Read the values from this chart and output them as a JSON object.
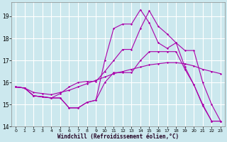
{
  "xlabel": "Windchill (Refroidissement éolien,°C)",
  "bg_color": "#cce8ee",
  "grid_color": "#ffffff",
  "line_color": "#aa00aa",
  "xlim_min": -0.5,
  "xlim_max": 23.5,
  "ylim_min": 14.0,
  "ylim_max": 19.65,
  "yticks": [
    14,
    15,
    16,
    17,
    18,
    19
  ],
  "xticks": [
    0,
    1,
    2,
    3,
    4,
    5,
    6,
    7,
    8,
    9,
    10,
    11,
    12,
    13,
    14,
    15,
    16,
    17,
    18,
    19,
    20,
    21,
    22,
    23
  ],
  "series": [
    {
      "x": [
        0,
        1,
        2,
        3,
        4,
        5,
        6,
        7,
        8,
        9,
        10,
        11,
        12,
        13,
        14,
        15,
        16,
        17,
        18,
        19,
        20,
        21,
        22,
        23
      ],
      "y": [
        15.8,
        15.75,
        15.4,
        15.35,
        15.3,
        15.3,
        14.85,
        14.85,
        15.1,
        15.2,
        17.0,
        18.45,
        18.65,
        18.65,
        19.3,
        18.7,
        17.8,
        17.55,
        17.8,
        16.7,
        15.9,
        15.0,
        14.25,
        14.25
      ]
    },
    {
      "x": [
        0,
        1,
        2,
        3,
        4,
        5,
        6,
        7,
        8,
        9,
        10,
        11,
        12,
        13,
        14,
        15,
        16,
        17,
        18,
        19,
        20,
        21,
        22,
        23
      ],
      "y": [
        15.8,
        15.75,
        15.4,
        15.35,
        15.3,
        15.5,
        15.8,
        16.0,
        16.05,
        16.05,
        16.5,
        17.0,
        17.5,
        17.5,
        18.45,
        19.25,
        18.55,
        18.2,
        17.8,
        17.45,
        17.45,
        16.0,
        15.0,
        14.25
      ]
    },
    {
      "x": [
        0,
        1,
        2,
        3,
        4,
        5,
        6,
        7,
        8,
        9,
        10,
        11,
        12,
        13,
        14,
        15,
        16,
        17,
        18,
        19,
        20,
        21,
        22,
        23
      ],
      "y": [
        15.8,
        15.75,
        15.55,
        15.5,
        15.45,
        15.55,
        15.65,
        15.8,
        15.95,
        16.1,
        16.25,
        16.4,
        16.5,
        16.6,
        16.7,
        16.8,
        16.85,
        16.9,
        16.9,
        16.85,
        16.75,
        16.6,
        16.5,
        16.4
      ]
    },
    {
      "x": [
        0,
        1,
        2,
        3,
        4,
        5,
        6,
        7,
        8,
        9,
        10,
        11,
        12,
        13,
        14,
        15,
        16,
        17,
        18,
        19,
        20,
        21,
        22,
        23
      ],
      "y": [
        15.8,
        15.75,
        15.4,
        15.35,
        15.3,
        15.3,
        14.85,
        14.85,
        15.1,
        15.2,
        16.0,
        16.45,
        16.45,
        16.45,
        17.0,
        17.4,
        17.4,
        17.4,
        17.4,
        16.6,
        15.9,
        14.95,
        14.25,
        14.25
      ]
    }
  ]
}
